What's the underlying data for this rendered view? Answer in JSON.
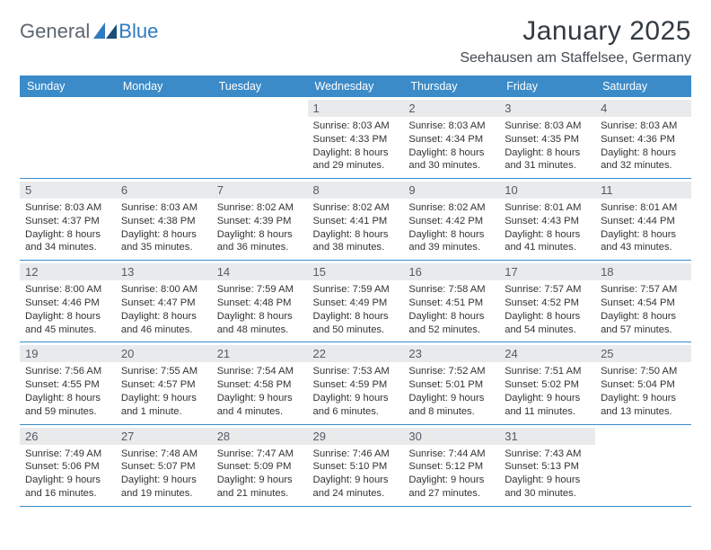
{
  "brand": {
    "part1": "General",
    "part2": "Blue"
  },
  "title": "January 2025",
  "location": "Seehausen am Staffelsee, Germany",
  "colors": {
    "header_bg": "#3b8bc8",
    "header_text": "#ffffff",
    "daynum_bg": "#e9eaec",
    "daynum_text": "#555b63",
    "border": "#3b8bc8",
    "brand_gray": "#5d6570",
    "brand_blue": "#2f7bbf",
    "body_text": "#333333"
  },
  "typography": {
    "title_fontsize": 30,
    "location_fontsize": 16,
    "header_fontsize": 12.5,
    "cell_fontsize": 11.2
  },
  "headers": [
    "Sunday",
    "Monday",
    "Tuesday",
    "Wednesday",
    "Thursday",
    "Friday",
    "Saturday"
  ],
  "weeks": [
    [
      {
        "n": "",
        "sr": "",
        "ss": "",
        "dl1": "",
        "dl2": ""
      },
      {
        "n": "",
        "sr": "",
        "ss": "",
        "dl1": "",
        "dl2": ""
      },
      {
        "n": "",
        "sr": "",
        "ss": "",
        "dl1": "",
        "dl2": ""
      },
      {
        "n": "1",
        "sr": "Sunrise: 8:03 AM",
        "ss": "Sunset: 4:33 PM",
        "dl1": "Daylight: 8 hours",
        "dl2": "and 29 minutes."
      },
      {
        "n": "2",
        "sr": "Sunrise: 8:03 AM",
        "ss": "Sunset: 4:34 PM",
        "dl1": "Daylight: 8 hours",
        "dl2": "and 30 minutes."
      },
      {
        "n": "3",
        "sr": "Sunrise: 8:03 AM",
        "ss": "Sunset: 4:35 PM",
        "dl1": "Daylight: 8 hours",
        "dl2": "and 31 minutes."
      },
      {
        "n": "4",
        "sr": "Sunrise: 8:03 AM",
        "ss": "Sunset: 4:36 PM",
        "dl1": "Daylight: 8 hours",
        "dl2": "and 32 minutes."
      }
    ],
    [
      {
        "n": "5",
        "sr": "Sunrise: 8:03 AM",
        "ss": "Sunset: 4:37 PM",
        "dl1": "Daylight: 8 hours",
        "dl2": "and 34 minutes."
      },
      {
        "n": "6",
        "sr": "Sunrise: 8:03 AM",
        "ss": "Sunset: 4:38 PM",
        "dl1": "Daylight: 8 hours",
        "dl2": "and 35 minutes."
      },
      {
        "n": "7",
        "sr": "Sunrise: 8:02 AM",
        "ss": "Sunset: 4:39 PM",
        "dl1": "Daylight: 8 hours",
        "dl2": "and 36 minutes."
      },
      {
        "n": "8",
        "sr": "Sunrise: 8:02 AM",
        "ss": "Sunset: 4:41 PM",
        "dl1": "Daylight: 8 hours",
        "dl2": "and 38 minutes."
      },
      {
        "n": "9",
        "sr": "Sunrise: 8:02 AM",
        "ss": "Sunset: 4:42 PM",
        "dl1": "Daylight: 8 hours",
        "dl2": "and 39 minutes."
      },
      {
        "n": "10",
        "sr": "Sunrise: 8:01 AM",
        "ss": "Sunset: 4:43 PM",
        "dl1": "Daylight: 8 hours",
        "dl2": "and 41 minutes."
      },
      {
        "n": "11",
        "sr": "Sunrise: 8:01 AM",
        "ss": "Sunset: 4:44 PM",
        "dl1": "Daylight: 8 hours",
        "dl2": "and 43 minutes."
      }
    ],
    [
      {
        "n": "12",
        "sr": "Sunrise: 8:00 AM",
        "ss": "Sunset: 4:46 PM",
        "dl1": "Daylight: 8 hours",
        "dl2": "and 45 minutes."
      },
      {
        "n": "13",
        "sr": "Sunrise: 8:00 AM",
        "ss": "Sunset: 4:47 PM",
        "dl1": "Daylight: 8 hours",
        "dl2": "and 46 minutes."
      },
      {
        "n": "14",
        "sr": "Sunrise: 7:59 AM",
        "ss": "Sunset: 4:48 PM",
        "dl1": "Daylight: 8 hours",
        "dl2": "and 48 minutes."
      },
      {
        "n": "15",
        "sr": "Sunrise: 7:59 AM",
        "ss": "Sunset: 4:49 PM",
        "dl1": "Daylight: 8 hours",
        "dl2": "and 50 minutes."
      },
      {
        "n": "16",
        "sr": "Sunrise: 7:58 AM",
        "ss": "Sunset: 4:51 PM",
        "dl1": "Daylight: 8 hours",
        "dl2": "and 52 minutes."
      },
      {
        "n": "17",
        "sr": "Sunrise: 7:57 AM",
        "ss": "Sunset: 4:52 PM",
        "dl1": "Daylight: 8 hours",
        "dl2": "and 54 minutes."
      },
      {
        "n": "18",
        "sr": "Sunrise: 7:57 AM",
        "ss": "Sunset: 4:54 PM",
        "dl1": "Daylight: 8 hours",
        "dl2": "and 57 minutes."
      }
    ],
    [
      {
        "n": "19",
        "sr": "Sunrise: 7:56 AM",
        "ss": "Sunset: 4:55 PM",
        "dl1": "Daylight: 8 hours",
        "dl2": "and 59 minutes."
      },
      {
        "n": "20",
        "sr": "Sunrise: 7:55 AM",
        "ss": "Sunset: 4:57 PM",
        "dl1": "Daylight: 9 hours",
        "dl2": "and 1 minute."
      },
      {
        "n": "21",
        "sr": "Sunrise: 7:54 AM",
        "ss": "Sunset: 4:58 PM",
        "dl1": "Daylight: 9 hours",
        "dl2": "and 4 minutes."
      },
      {
        "n": "22",
        "sr": "Sunrise: 7:53 AM",
        "ss": "Sunset: 4:59 PM",
        "dl1": "Daylight: 9 hours",
        "dl2": "and 6 minutes."
      },
      {
        "n": "23",
        "sr": "Sunrise: 7:52 AM",
        "ss": "Sunset: 5:01 PM",
        "dl1": "Daylight: 9 hours",
        "dl2": "and 8 minutes."
      },
      {
        "n": "24",
        "sr": "Sunrise: 7:51 AM",
        "ss": "Sunset: 5:02 PM",
        "dl1": "Daylight: 9 hours",
        "dl2": "and 11 minutes."
      },
      {
        "n": "25",
        "sr": "Sunrise: 7:50 AM",
        "ss": "Sunset: 5:04 PM",
        "dl1": "Daylight: 9 hours",
        "dl2": "and 13 minutes."
      }
    ],
    [
      {
        "n": "26",
        "sr": "Sunrise: 7:49 AM",
        "ss": "Sunset: 5:06 PM",
        "dl1": "Daylight: 9 hours",
        "dl2": "and 16 minutes."
      },
      {
        "n": "27",
        "sr": "Sunrise: 7:48 AM",
        "ss": "Sunset: 5:07 PM",
        "dl1": "Daylight: 9 hours",
        "dl2": "and 19 minutes."
      },
      {
        "n": "28",
        "sr": "Sunrise: 7:47 AM",
        "ss": "Sunset: 5:09 PM",
        "dl1": "Daylight: 9 hours",
        "dl2": "and 21 minutes."
      },
      {
        "n": "29",
        "sr": "Sunrise: 7:46 AM",
        "ss": "Sunset: 5:10 PM",
        "dl1": "Daylight: 9 hours",
        "dl2": "and 24 minutes."
      },
      {
        "n": "30",
        "sr": "Sunrise: 7:44 AM",
        "ss": "Sunset: 5:12 PM",
        "dl1": "Daylight: 9 hours",
        "dl2": "and 27 minutes."
      },
      {
        "n": "31",
        "sr": "Sunrise: 7:43 AM",
        "ss": "Sunset: 5:13 PM",
        "dl1": "Daylight: 9 hours",
        "dl2": "and 30 minutes."
      },
      {
        "n": "",
        "sr": "",
        "ss": "",
        "dl1": "",
        "dl2": ""
      }
    ]
  ]
}
